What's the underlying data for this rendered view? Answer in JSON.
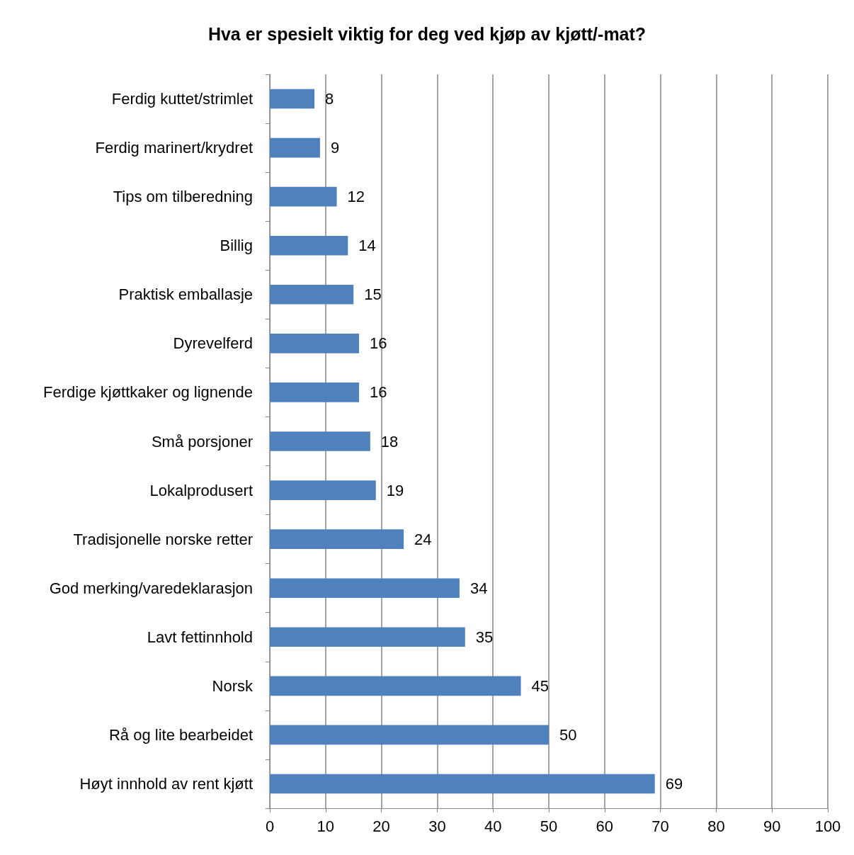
{
  "chart_data": {
    "type": "bar",
    "orientation": "horizontal",
    "title": "Hva er spesielt viktig for deg ved kjøp av kjøtt/-mat?",
    "categories": [
      "Ferdig kuttet/strimlet",
      "Ferdig marinert/krydret",
      "Tips om tilberedning",
      "Billig",
      "Praktisk emballasje",
      "Dyrevelferd",
      "Ferdige kjøttkaker og lignende",
      "Små porsjoner",
      "Lokalprodusert",
      "Tradisjonelle norske retter",
      "God merking/varedeklarasjon",
      "Lavt fettinnhold",
      "Norsk",
      "Rå og lite bearbeidet",
      "Høyt innhold av rent kjøtt"
    ],
    "values": [
      8,
      9,
      12,
      14,
      15,
      16,
      16,
      18,
      19,
      24,
      34,
      35,
      45,
      50,
      69
    ],
    "color": "#4f81bd",
    "xlim": [
      0,
      100
    ],
    "xticks": [
      0,
      10,
      20,
      30,
      40,
      50,
      60,
      70,
      80,
      90,
      100
    ],
    "grid": "x",
    "data_labels": true
  }
}
